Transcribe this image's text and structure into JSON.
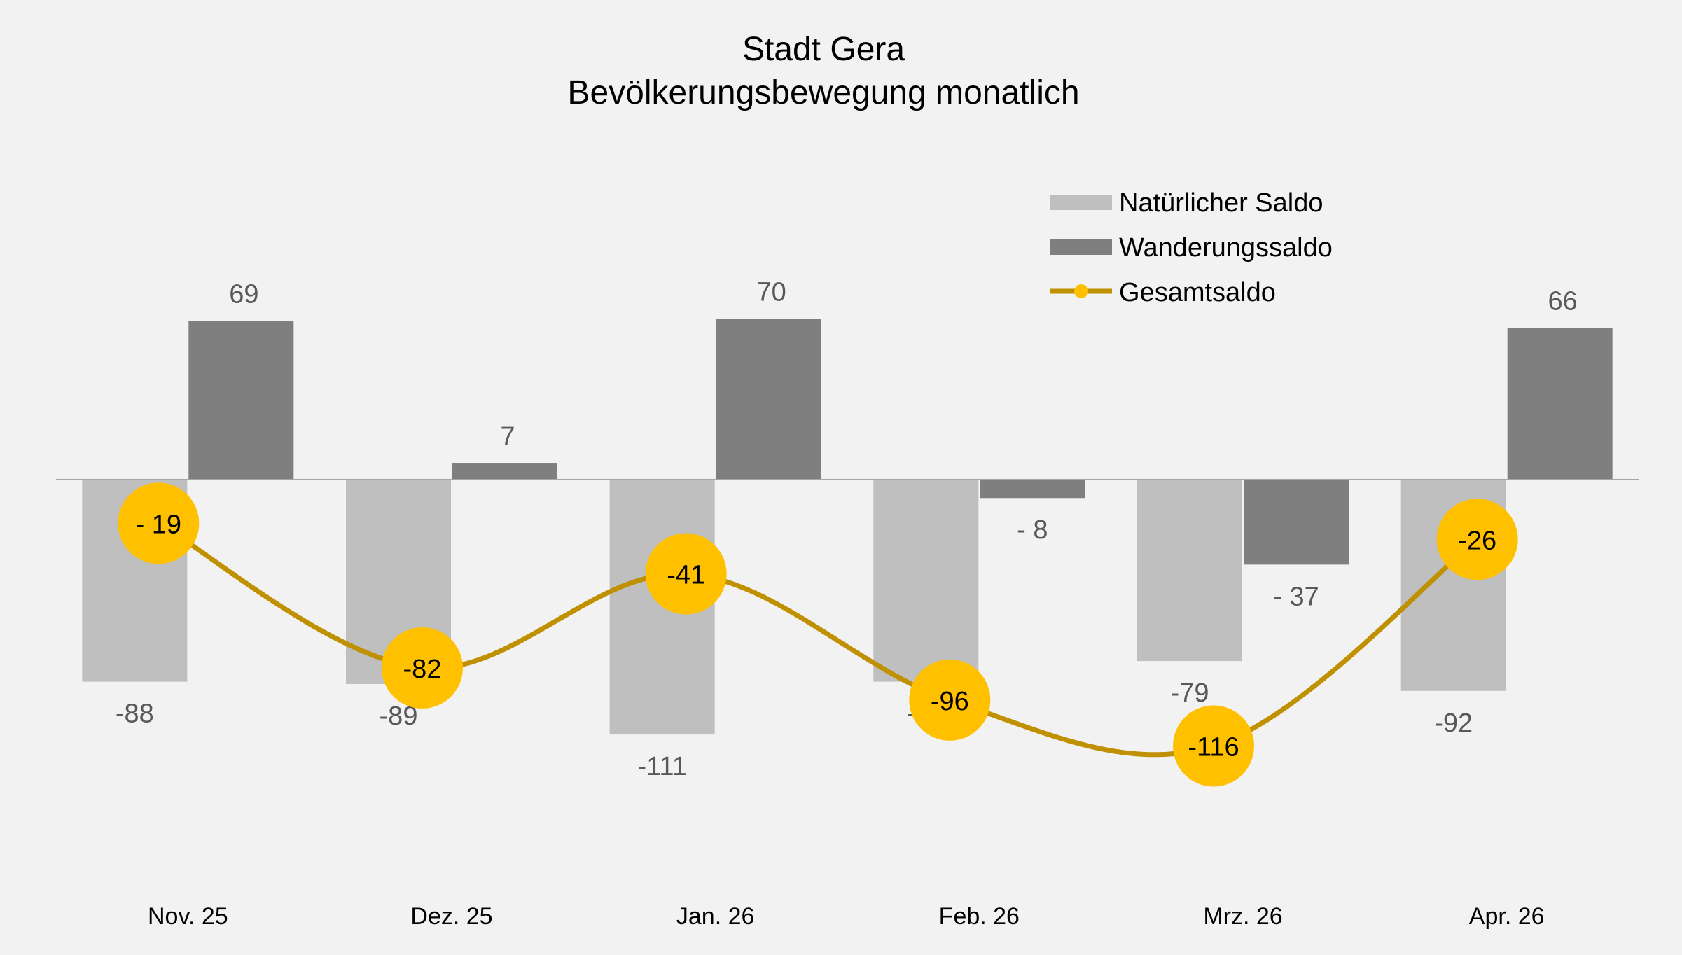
{
  "chart_data": {
    "type": "bar",
    "title": "Stadt Gera",
    "subtitle": "Bevölkerungsbewegung monatlich",
    "categories": [
      "Nov. 25",
      "Dez. 25",
      "Jan. 26",
      "Feb. 26",
      "Mrz. 26",
      "Apr. 26"
    ],
    "series": [
      {
        "name": "Natürlicher Saldo",
        "type": "bar",
        "color": "#bfbfbf",
        "values": [
          -88,
          -89,
          -111,
          -88,
          -79,
          -92
        ],
        "labels": [
          "-88",
          "-89",
          "-111",
          "-88",
          "-79",
          "-92"
        ]
      },
      {
        "name": "Wanderungssaldo",
        "type": "bar",
        "color": "#7f7f7f",
        "values": [
          69,
          7,
          70,
          -8,
          -37,
          66
        ],
        "labels": [
          "69",
          "7",
          "70",
          "- 8",
          "- 37",
          "66"
        ]
      },
      {
        "name": "Gesamtsaldo",
        "type": "line",
        "color": "#bf9000",
        "marker_color": "#ffc000",
        "values": [
          -19,
          -82,
          -41,
          -96,
          -116,
          -26
        ],
        "labels": [
          "- 19",
          "-82",
          "-41",
          "-96",
          "-116",
          "-26"
        ]
      }
    ],
    "ylim": [
      -140,
      130
    ],
    "grid": false,
    "legend_position": "top-right"
  }
}
